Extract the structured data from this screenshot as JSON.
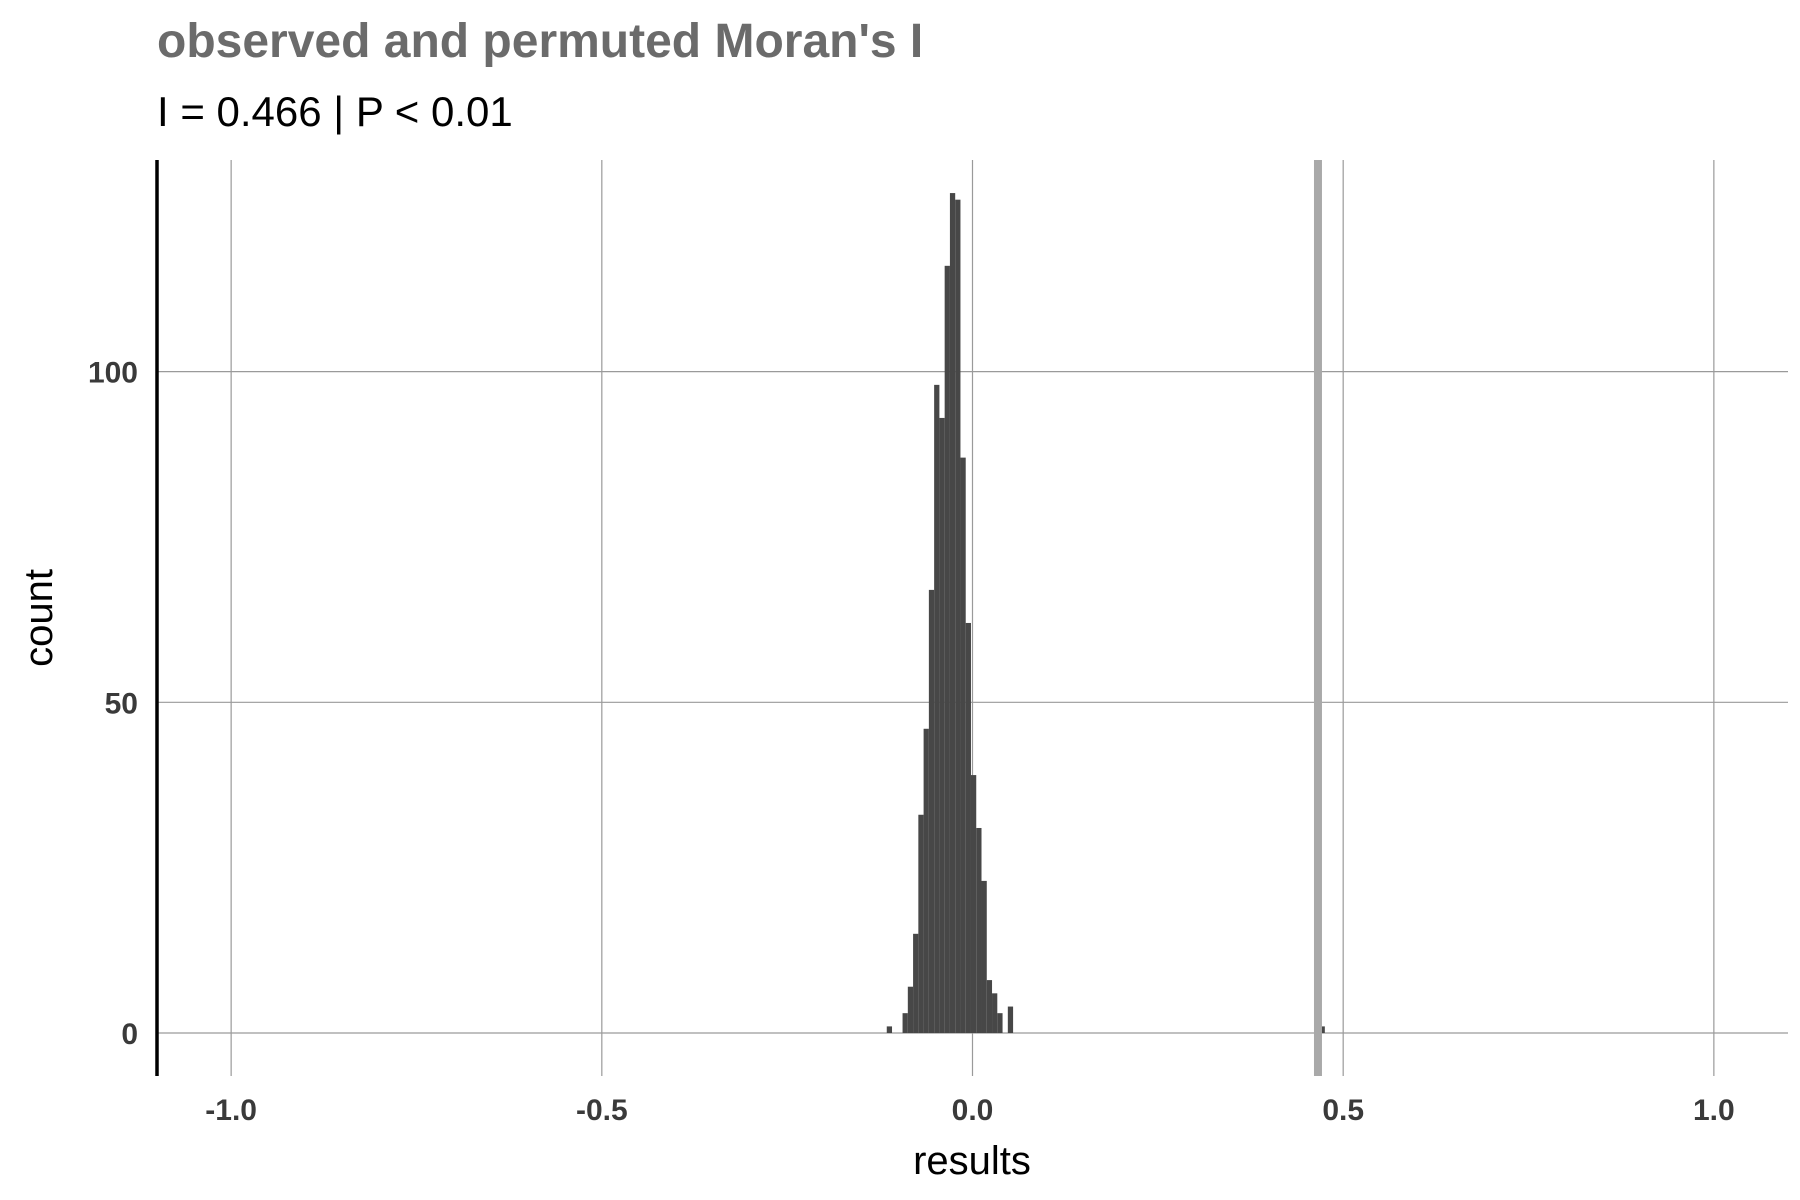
{
  "chart_data": {
    "type": "bar",
    "title": "observed and permuted Moran's I",
    "subtitle": "I = 0.466 | P < 0.01",
    "xlabel": "results",
    "ylabel": "count",
    "xlim": [
      -1.1,
      1.1
    ],
    "ylim": [
      -6.5,
      132
    ],
    "x_ticks": [
      -1.0,
      -0.5,
      0.0,
      0.5,
      1.0
    ],
    "x_tick_labels": [
      "-1.0",
      "-0.5",
      "0.0",
      "0.5",
      "1.0"
    ],
    "y_ticks": [
      0,
      50,
      100
    ],
    "y_tick_labels": [
      "0",
      "50",
      "100"
    ],
    "grid": true,
    "bin_width": 0.0071,
    "bins": [
      {
        "x": -0.1121,
        "count": 1
      },
      {
        "x": -0.0908,
        "count": 3
      },
      {
        "x": -0.0837,
        "count": 7
      },
      {
        "x": -0.0766,
        "count": 15
      },
      {
        "x": -0.0695,
        "count": 33
      },
      {
        "x": -0.0624,
        "count": 46
      },
      {
        "x": -0.0553,
        "count": 67
      },
      {
        "x": -0.0482,
        "count": 98
      },
      {
        "x": -0.0411,
        "count": 93
      },
      {
        "x": -0.034,
        "count": 116
      },
      {
        "x": -0.0269,
        "count": 127
      },
      {
        "x": -0.0198,
        "count": 126
      },
      {
        "x": -0.0127,
        "count": 87
      },
      {
        "x": -0.0056,
        "count": 62
      },
      {
        "x": 0.0015,
        "count": 39
      },
      {
        "x": 0.0086,
        "count": 31
      },
      {
        "x": 0.0157,
        "count": 23
      },
      {
        "x": 0.0228,
        "count": 8
      },
      {
        "x": 0.0299,
        "count": 6
      },
      {
        "x": 0.037,
        "count": 3
      },
      {
        "x": 0.0512,
        "count": 4
      },
      {
        "x": 0.4717,
        "count": 1
      }
    ],
    "observed_line": {
      "x": 0.466,
      "color": "#a9a9a9"
    },
    "colors": {
      "bar": "#474747",
      "grid": "#9a9a9a",
      "axis": "#000000"
    }
  }
}
